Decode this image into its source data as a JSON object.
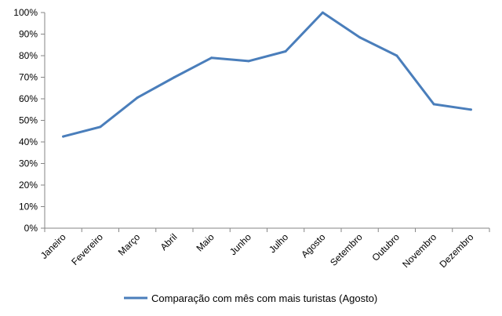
{
  "chart_data": {
    "type": "line",
    "categories": [
      "Janeiro",
      "Fevereiro",
      "Março",
      "Abril",
      "Maio",
      "Junho",
      "Julho",
      "Agosto",
      "Setembro",
      "Outubro",
      "Novembro",
      "Dezembro"
    ],
    "series": [
      {
        "name": "Comparação com mês com mais turistas (Agosto)",
        "values": [
          42.5,
          47,
          60.5,
          70,
          79,
          77.5,
          82,
          100,
          88.5,
          80,
          57.5,
          55
        ],
        "color": "#4a7ebb"
      }
    ],
    "yticks": [
      "0%",
      "10%",
      "20%",
      "30%",
      "40%",
      "50%",
      "60%",
      "70%",
      "80%",
      "90%",
      "100%"
    ],
    "ylim": [
      0,
      100
    ],
    "grid": false,
    "legend": "bottom",
    "title": "",
    "xlabel": "",
    "ylabel": ""
  }
}
